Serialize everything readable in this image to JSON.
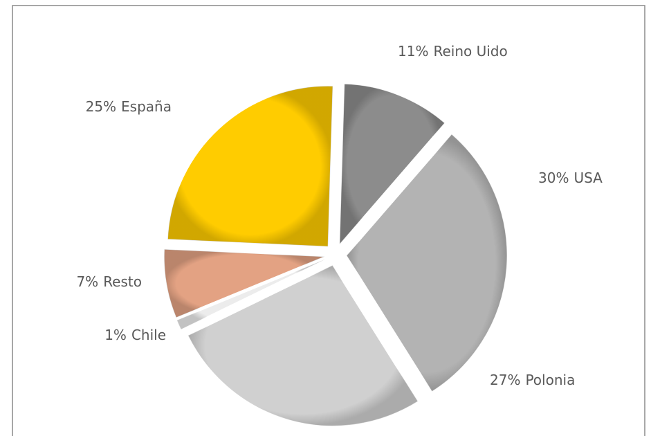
{
  "chart_data": {
    "type": "pie",
    "categories": [
      "Reino Uido",
      "USA",
      "Polonia",
      "Chile",
      "Resto",
      "España"
    ],
    "values": [
      11,
      30,
      27,
      1,
      7,
      25
    ],
    "value_labels": [
      "11%",
      "30%",
      "27%",
      "1%",
      "7%",
      "25%"
    ],
    "colors": [
      "#8c8c8c",
      "#b3b3b3",
      "#d0d0d0",
      "#ececec",
      "#e3a283",
      "#ffcc00"
    ]
  }
}
